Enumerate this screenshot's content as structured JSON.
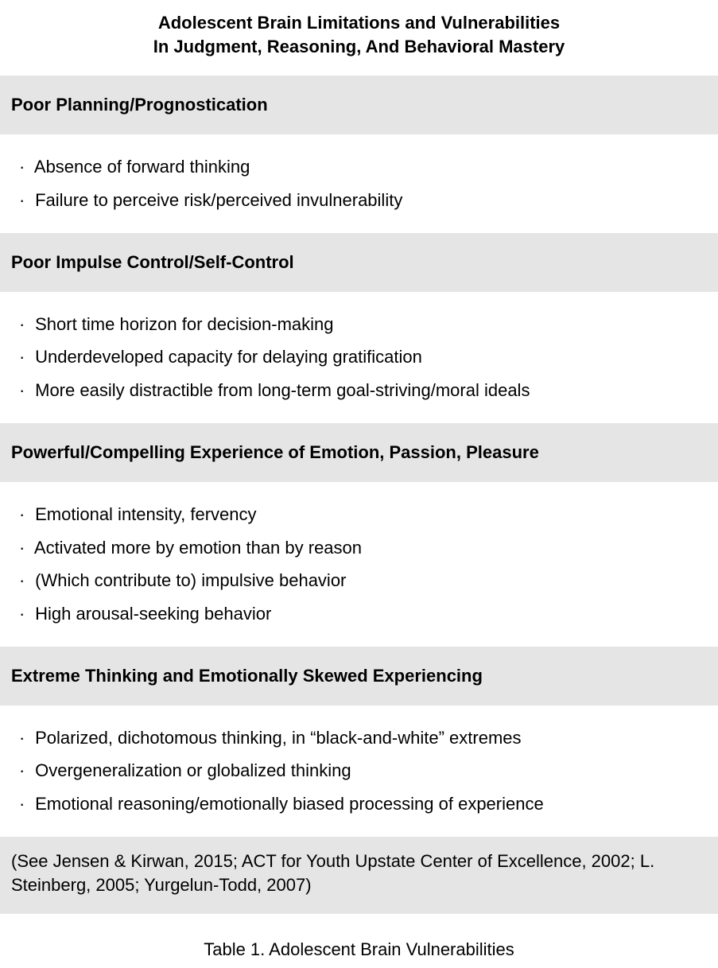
{
  "title": {
    "line1": "Adolescent Brain Limitations and Vulnerabilities",
    "line2": "In Judgment, Reasoning, And Behavioral Mastery"
  },
  "sections": [
    {
      "header": "Poor Planning/Prognostication",
      "items": [
        "Absence of forward thinking",
        "Failure to perceive risk/perceived invulnerability"
      ]
    },
    {
      "header": "Poor Impulse Control/Self-Control",
      "items": [
        "Short time horizon for decision-making",
        "Underdeveloped capacity for delaying gratification",
        "More easily distractible from long-term goal-striving/moral ideals"
      ]
    },
    {
      "header": "Powerful/Compelling Experience of Emotion, Passion, Pleasure",
      "items": [
        "Emotional intensity, fervency",
        "Activated more by emotion than by reason",
        "(Which contribute to) impulsive behavior",
        "High arousal-seeking behavior"
      ]
    },
    {
      "header": "Extreme Thinking and Emotionally Skewed Experiencing",
      "items": [
        "Polarized, dichotomous thinking, in “black-and-white” extremes",
        "Overgeneralization or globalized thinking",
        "Emotional reasoning/emotionally biased processing of experience"
      ]
    }
  ],
  "citations": "(See Jensen & Kirwan, 2015; ACT for Youth Upstate Center of Excellence, 2002; L. Steinberg, 2005; Yurgelun-Todd, 2007)",
  "caption": "Table 1. Adolescent Brain Vulnerabilities",
  "bullet": "·",
  "colors": {
    "header_bg": "#e5e5e5",
    "body_bg": "#ffffff",
    "text": "#000000"
  },
  "typography": {
    "base_fontsize": 22,
    "header_weight": 600,
    "body_weight": 400
  }
}
